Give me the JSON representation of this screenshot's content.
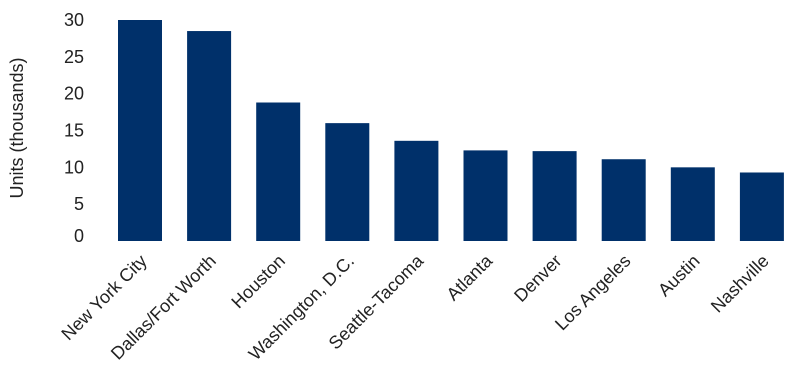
{
  "chart_data": {
    "type": "bar",
    "title": "",
    "xlabel": "",
    "ylabel": "Units (thousands)",
    "categories": [
      "New York City",
      "Dallas/Fort Worth",
      "Houston",
      "Washington, D.C.",
      "Seattle-Tacoma",
      "Atlanta",
      "Denver",
      "Los Angeles",
      "Austin",
      "Nashville"
    ],
    "values": [
      30.0,
      28.5,
      18.8,
      16.0,
      13.6,
      12.3,
      12.2,
      11.1,
      10.0,
      9.3
    ],
    "yticks": [
      0,
      5,
      10,
      15,
      20,
      25,
      30
    ],
    "ylim": [
      0,
      30
    ],
    "grid": false,
    "legend": "none",
    "bar_color": "#00306a"
  }
}
